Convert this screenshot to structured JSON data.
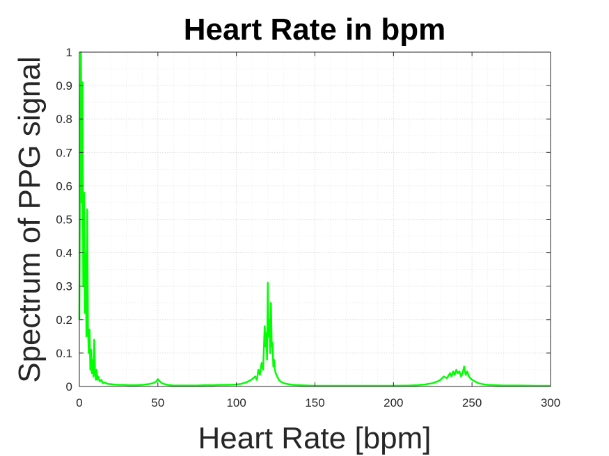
{
  "chart_data": {
    "type": "line",
    "title": "Heart Rate in bpm",
    "xlabel": "Heart Rate [bpm]",
    "ylabel": "Spectrum of PPG signal",
    "xlim": [
      0,
      300
    ],
    "ylim": [
      0,
      1
    ],
    "xticks": [
      "0",
      "50",
      "100",
      "150",
      "200",
      "250",
      "300"
    ],
    "yticks": [
      "0",
      "0.1",
      "0.2",
      "0.3",
      "0.4",
      "0.5",
      "0.6",
      "0.7",
      "0.8",
      "0.9",
      "1"
    ],
    "grid": "on (major and minor, dotted)",
    "line_color": "#00ff00",
    "series": [
      {
        "x": [
          0,
          0.5,
          1,
          1.5,
          2,
          2.5,
          3,
          3.5,
          4,
          4.5,
          5,
          5.5,
          6,
          6.5,
          7,
          7.5,
          8,
          8.5,
          9,
          9.5,
          10,
          10.5,
          11,
          11.5,
          12,
          13,
          14,
          15,
          16,
          17,
          18,
          20,
          22,
          25,
          28,
          32,
          36,
          40,
          44,
          47,
          49,
          50,
          51,
          53,
          56,
          60,
          65,
          70,
          75,
          80,
          85,
          90,
          95,
          100,
          103,
          106,
          108,
          110,
          112,
          113,
          114,
          115,
          116,
          117,
          118,
          118.5,
          119,
          119.5,
          120,
          120.5,
          121,
          121.5,
          122,
          122.5,
          123,
          123.5,
          124,
          124.5,
          125,
          126,
          127,
          128,
          130,
          133,
          136,
          140,
          145,
          150,
          160,
          170,
          180,
          190,
          200,
          210,
          215,
          220,
          225,
          228,
          230,
          232,
          234,
          236,
          237,
          238,
          239,
          240,
          241,
          242,
          243,
          244,
          245,
          246,
          247,
          248,
          249,
          250,
          252,
          254,
          256,
          258,
          260,
          265,
          270,
          280,
          290,
          300
        ],
        "y": [
          0.2,
          0.65,
          1.0,
          0.55,
          0.91,
          0.3,
          0.58,
          0.22,
          0.4,
          0.15,
          0.53,
          0.18,
          0.1,
          0.17,
          0.05,
          0.11,
          0.04,
          0.08,
          0.03,
          0.14,
          0.04,
          0.02,
          0.05,
          0.02,
          0.03,
          0.015,
          0.02,
          0.01,
          0.012,
          0.01,
          0.008,
          0.007,
          0.006,
          0.005,
          0.005,
          0.004,
          0.004,
          0.005,
          0.007,
          0.01,
          0.015,
          0.022,
          0.016,
          0.009,
          0.005,
          0.003,
          0.003,
          0.003,
          0.003,
          0.004,
          0.004,
          0.005,
          0.005,
          0.006,
          0.008,
          0.012,
          0.016,
          0.022,
          0.03,
          0.02,
          0.05,
          0.035,
          0.07,
          0.05,
          0.18,
          0.12,
          0.16,
          0.08,
          0.31,
          0.15,
          0.2,
          0.1,
          0.25,
          0.12,
          0.13,
          0.06,
          0.08,
          0.05,
          0.04,
          0.03,
          0.02,
          0.015,
          0.01,
          0.007,
          0.005,
          0.004,
          0.003,
          0.002,
          0.002,
          0.002,
          0.002,
          0.002,
          0.002,
          0.003,
          0.004,
          0.006,
          0.01,
          0.015,
          0.02,
          0.03,
          0.025,
          0.04,
          0.03,
          0.045,
          0.035,
          0.05,
          0.04,
          0.045,
          0.03,
          0.04,
          0.06,
          0.035,
          0.045,
          0.03,
          0.025,
          0.02,
          0.015,
          0.01,
          0.008,
          0.006,
          0.005,
          0.004,
          0.003,
          0.003,
          0.002,
          0.002
        ]
      }
    ]
  }
}
